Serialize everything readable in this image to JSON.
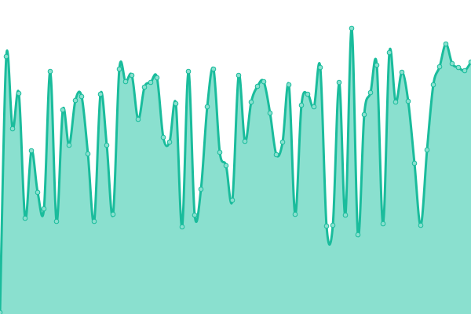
{
  "chart_data": {
    "type": "area",
    "title": "",
    "xlabel": "",
    "ylabel": "",
    "axes_visible": false,
    "grid": false,
    "legend": "none",
    "smooth": true,
    "markers": true,
    "ylim": [
      0,
      400
    ],
    "x": [
      0,
      1,
      2,
      3,
      4,
      5,
      6,
      7,
      8,
      9,
      10,
      11,
      12,
      13,
      14,
      15,
      16,
      17,
      18,
      19,
      20,
      21,
      22,
      23,
      24,
      25,
      26,
      27,
      28,
      29,
      30,
      31,
      32,
      33,
      34,
      35,
      36,
      37,
      38,
      39,
      40,
      41,
      42,
      43,
      44,
      45,
      46,
      47,
      48,
      49,
      50,
      51,
      52,
      53,
      54,
      55,
      56,
      57,
      58,
      59,
      60,
      61,
      62,
      63,
      64,
      65,
      66,
      67,
      68,
      69,
      70,
      71,
      72,
      73,
      74,
      75
    ],
    "values": [
      2,
      328,
      236,
      281,
      122,
      208,
      155,
      134,
      309,
      118,
      260,
      215,
      272,
      277,
      204,
      118,
      280,
      215,
      127,
      312,
      296,
      304,
      248,
      289,
      295,
      301,
      225,
      219,
      268,
      111,
      309,
      126,
      159,
      264,
      312,
      206,
      189,
      145,
      304,
      220,
      270,
      290,
      296,
      256,
      203,
      219,
      292,
      127,
      266,
      280,
      264,
      314,
      112,
      113,
      295,
      126,
      364,
      101,
      254,
      282,
      317,
      115,
      333,
      270,
      308,
      271,
      192,
      113,
      209,
      292,
      315,
      344,
      319,
      314,
      310,
      321
    ],
    "colors": {
      "line": "#1abc9c",
      "fill": "#8ae0cf",
      "marker_fill": "#8ae0cf",
      "marker_stroke": "#1abc9c"
    }
  }
}
